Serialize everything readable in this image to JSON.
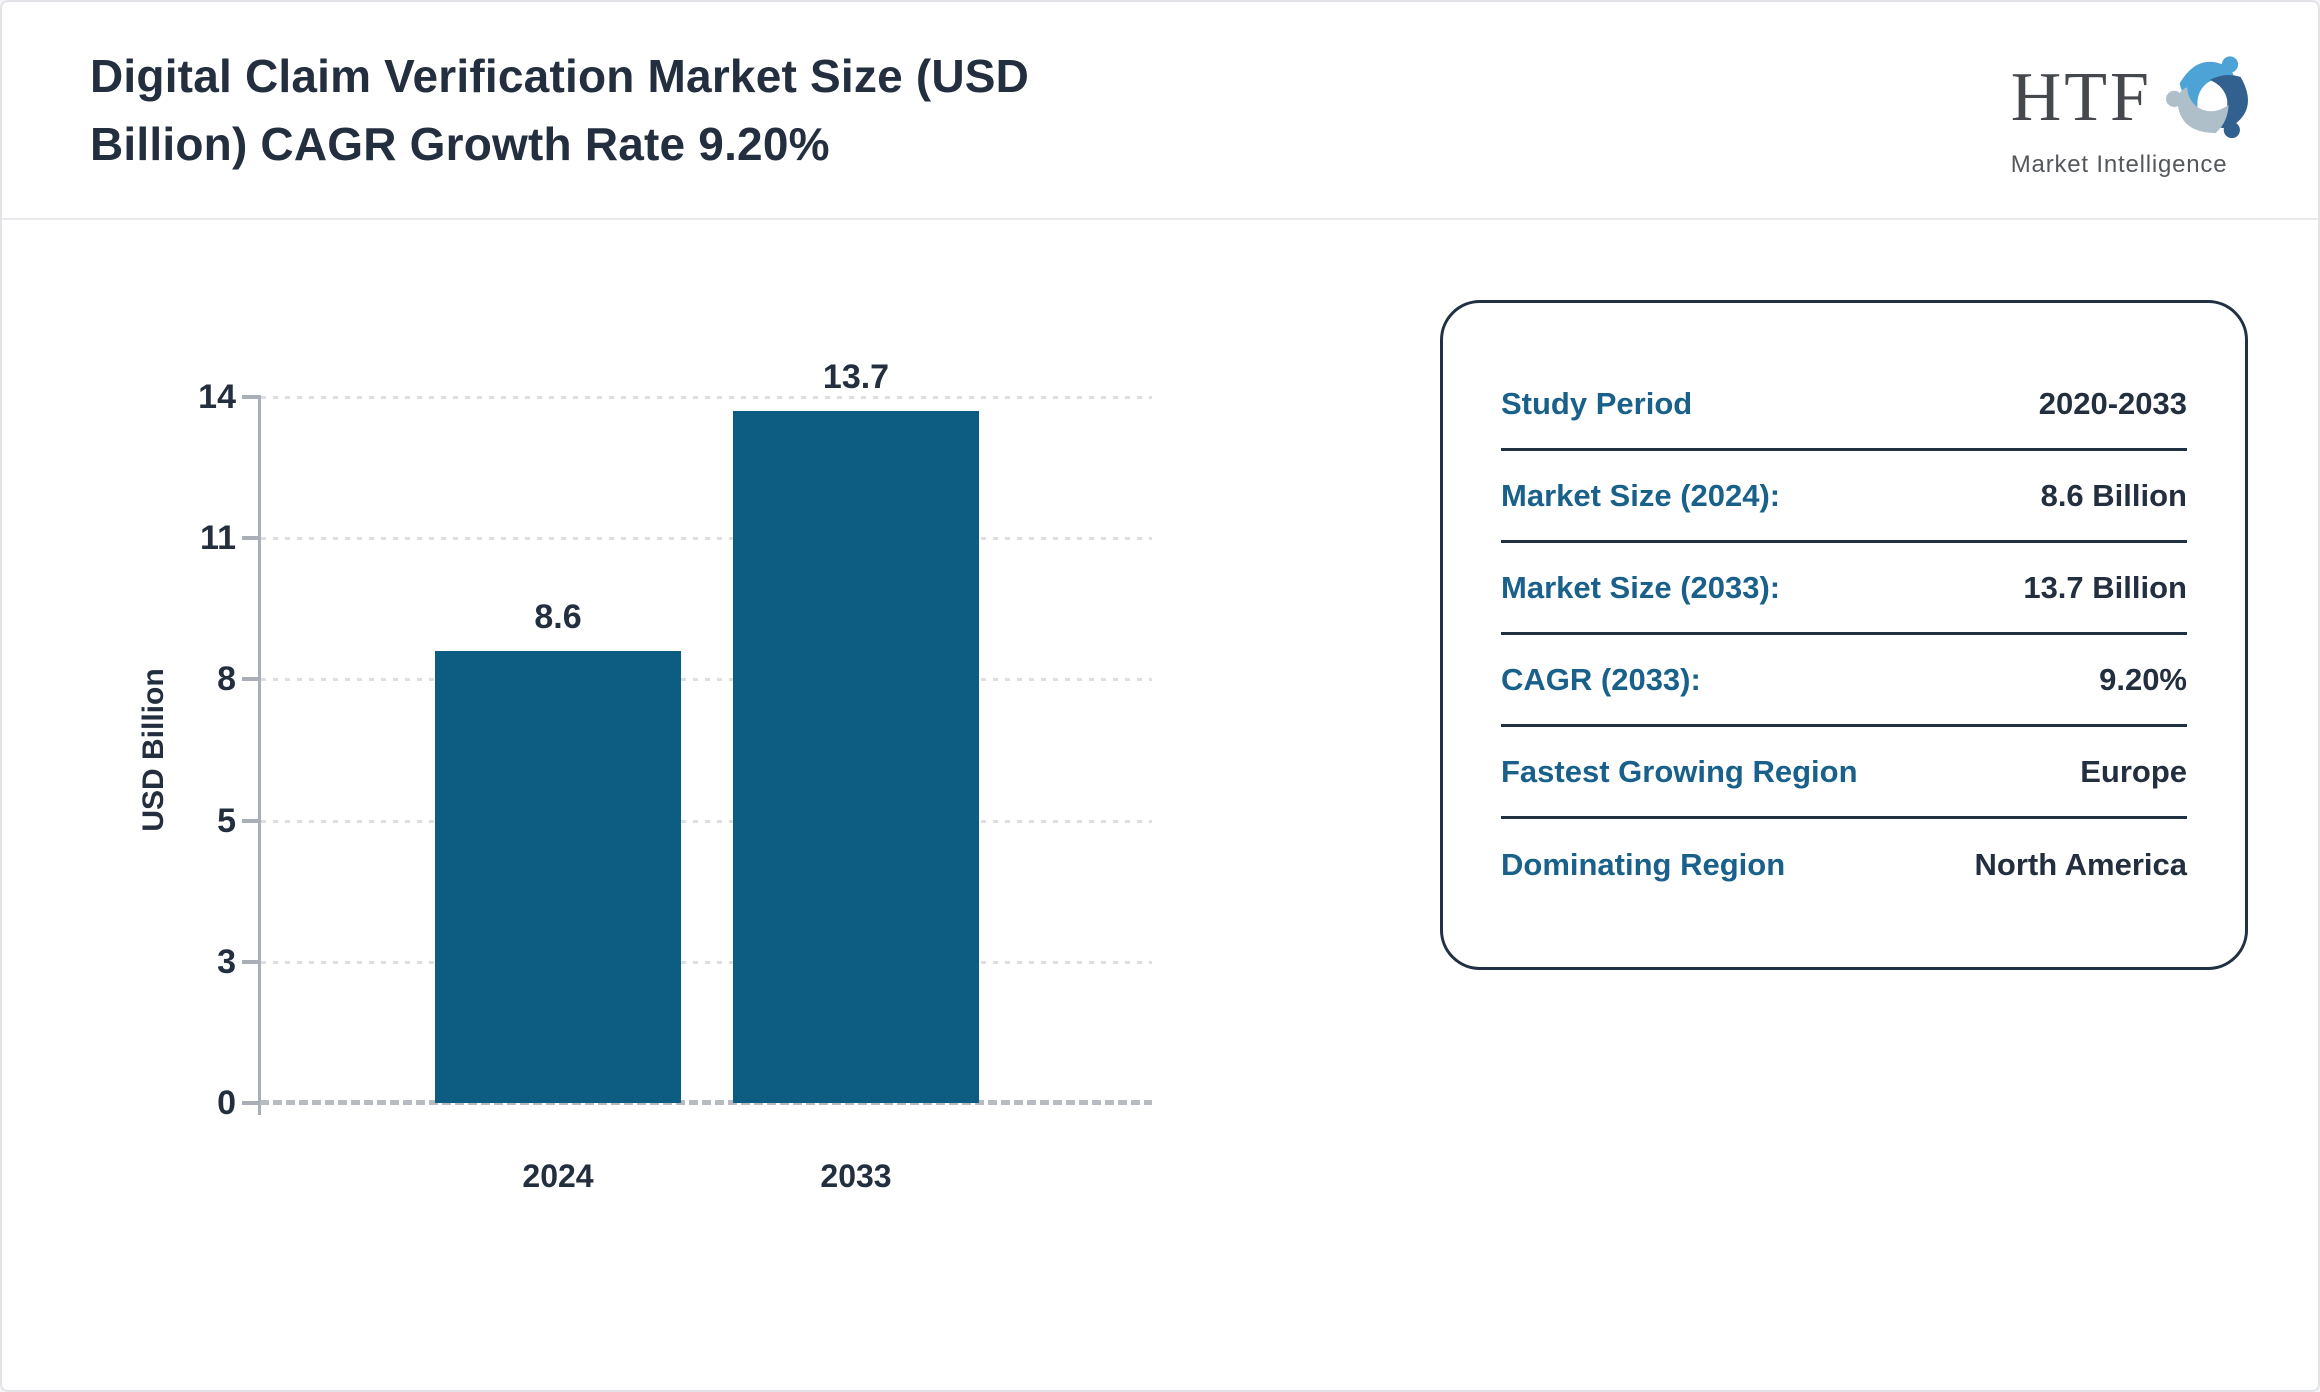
{
  "header": {
    "title": "Digital Claim Verification Market Size (USD\nBillion) CAGR Growth Rate 9.20%",
    "logo": {
      "name": "HTF",
      "subtitle": "Market Intelligence",
      "icon": "three-swirling-figures-icon",
      "icon_colors": [
        "#4da3d6",
        "#33618f",
        "#aebfca"
      ]
    }
  },
  "chart_data": {
    "type": "bar",
    "title": "Digital Claim Verification Market Size (USD Billion)",
    "categories": [
      "2024",
      "2033"
    ],
    "values": [
      8.6,
      13.7
    ],
    "value_labels": [
      "8.6",
      "13.7"
    ],
    "xlabel": "",
    "ylabel": "USD Billion",
    "yticks": [
      0,
      3,
      5,
      8,
      11,
      14
    ],
    "ylim": [
      0,
      14
    ],
    "grid": "horizontal-dotted",
    "legend": "none",
    "bar_color": "#0d5d82"
  },
  "info_panel": {
    "rows": [
      {
        "label": "Study Period",
        "value": "2020-2033"
      },
      {
        "label": "Market Size (2024):",
        "value": "8.6 Billion"
      },
      {
        "label": "Market Size (2033):",
        "value": "13.7 Billion"
      },
      {
        "label": "CAGR (2033):",
        "value": "9.20%"
      },
      {
        "label": "Fastest Growing Region",
        "value": "Europe"
      },
      {
        "label": "Dominating Region",
        "value": "North America"
      }
    ]
  },
  "colors": {
    "accent_bar": "#0d5d82",
    "accent_label": "#19618a",
    "text_dark": "#232e3e",
    "panel_border": "#223044",
    "axis_gray": "#a9aeb9"
  }
}
